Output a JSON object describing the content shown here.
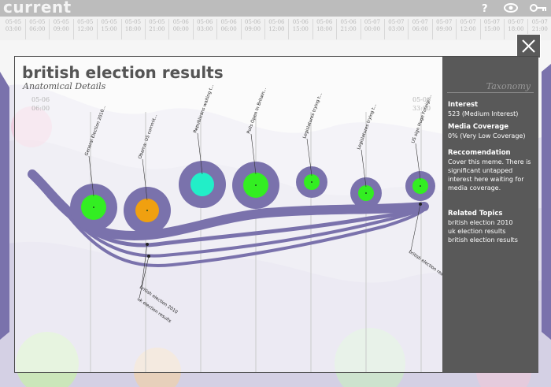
{
  "app": {
    "title": "current"
  },
  "icons": {
    "help": "help-icon",
    "view": "eye-icon",
    "key": "key-icon",
    "close": "close-icon"
  },
  "timeline": [
    {
      "date": "05-05",
      "time": "03:00"
    },
    {
      "date": "05-05",
      "time": "06:00"
    },
    {
      "date": "05-05",
      "time": "09:00"
    },
    {
      "date": "05-05",
      "time": "12:00"
    },
    {
      "date": "05-05",
      "time": "15:00"
    },
    {
      "date": "05-05",
      "time": "18:00"
    },
    {
      "date": "05-05",
      "time": "21:00"
    },
    {
      "date": "05-06",
      "time": "00:00"
    },
    {
      "date": "05-06",
      "time": "03:00"
    },
    {
      "date": "05-06",
      "time": "06:00"
    },
    {
      "date": "05-06",
      "time": "09:00"
    },
    {
      "date": "05-06",
      "time": "12:00"
    },
    {
      "date": "05-06",
      "time": "15:00"
    },
    {
      "date": "05-06",
      "time": "18:00"
    },
    {
      "date": "05-06",
      "time": "21:00"
    },
    {
      "date": "05-07",
      "time": "00:00"
    },
    {
      "date": "05-07",
      "time": "03:00"
    },
    {
      "date": "05-07",
      "time": "06:00"
    },
    {
      "date": "05-07",
      "time": "09:00"
    },
    {
      "date": "05-07",
      "time": "12:00"
    },
    {
      "date": "05-07",
      "time": "15:00"
    },
    {
      "date": "05-07",
      "time": "18:00"
    },
    {
      "date": "05-07",
      "time": "21:00"
    }
  ],
  "modal": {
    "title": "british election results",
    "subtitle": "Anatomical Details",
    "start_date": "05-06",
    "start_time": "06:00",
    "end_date": "05-06",
    "end_time": "33:00",
    "nodes": [
      {
        "label": "General Election 2010...",
        "color": "#33ee22"
      },
      {
        "label": "Obama: US commit...",
        "color": "#f0a010"
      },
      {
        "label": "Republicans waiting t...",
        "color": "#22eec8"
      },
      {
        "label": "Polls Open In Britain...",
        "color": "#33ee22"
      },
      {
        "label": "Legislatures trying t...",
        "color": "#33ee22"
      },
      {
        "label": "Legislatures trying t...",
        "color": "#33ee22"
      },
      {
        "label": "US sign Huge Foreign...",
        "color": "#33ee22"
      }
    ],
    "lower_labels": [
      "british election 2010",
      "uk election results",
      "british election results"
    ],
    "stream_color": "#7a72ac"
  },
  "taxonomy": {
    "title": "Taxonomy",
    "interest_label": "Interest",
    "interest_value": "523 (Medium Interest)",
    "coverage_label": "Media Coverage",
    "coverage_value": "0% (Very Low Coverage)",
    "recommendation_label": "Reccomendation",
    "recommendation_text": "Cover this meme. There is significant untapped interest here waiting for media coverage.",
    "related_label": "Related Topics",
    "related_topics": [
      "british election 2010",
      "uk election results",
      "british election results"
    ]
  }
}
